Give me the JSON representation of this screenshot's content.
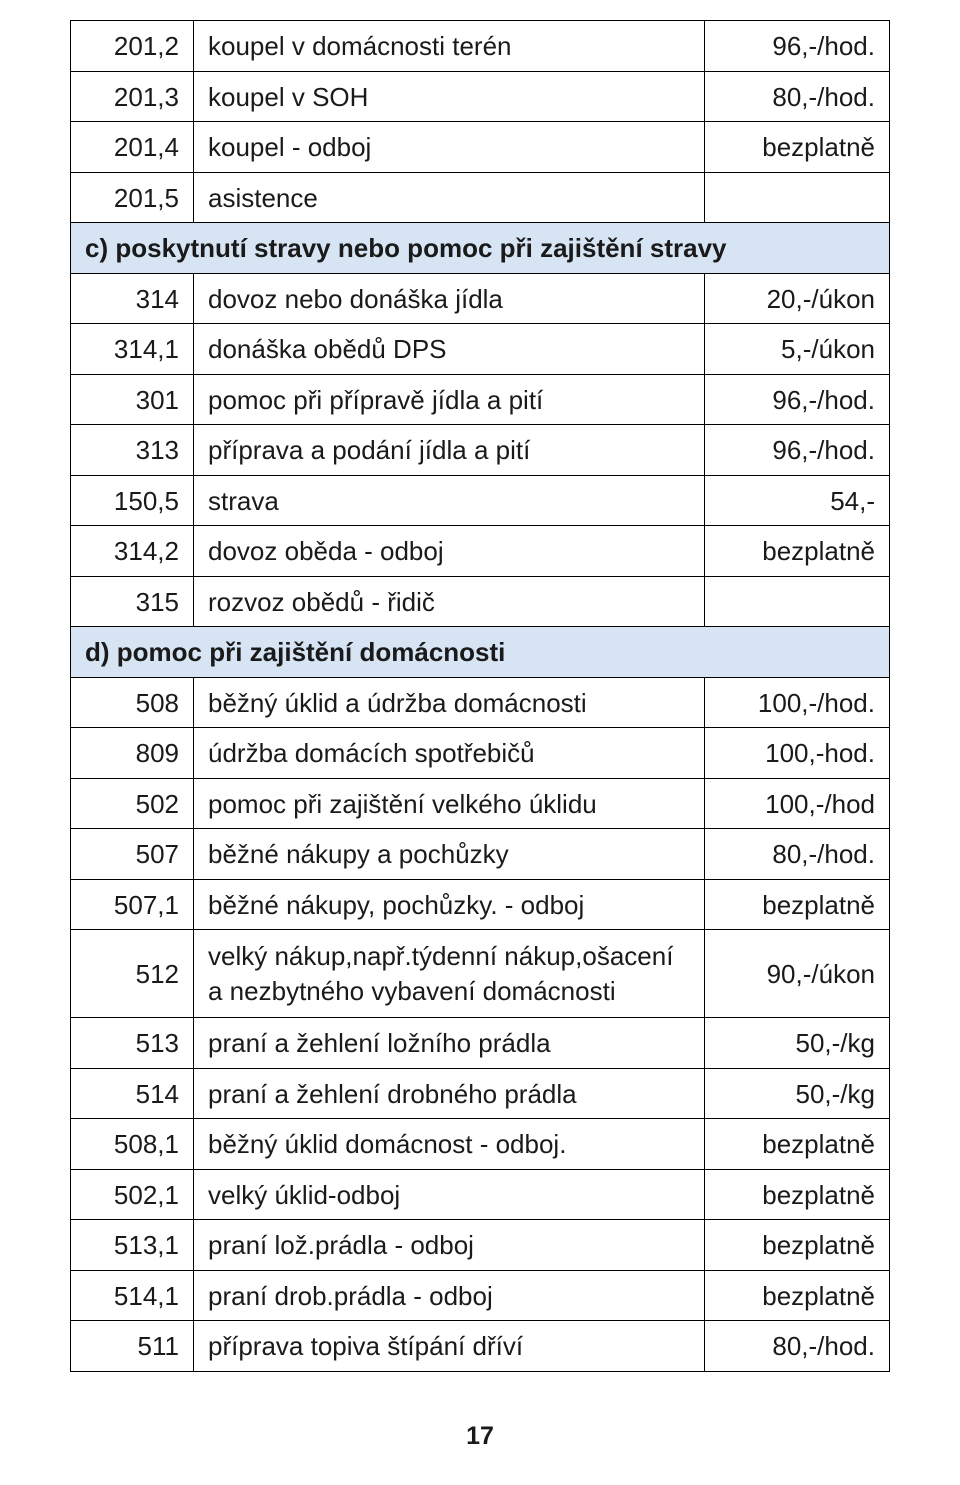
{
  "colors": {
    "section_bg": "#d6e4f4",
    "border": "#000000",
    "text": "#1a1a1a",
    "page_bg": "#ffffff"
  },
  "page_number": "17",
  "rows": [
    {
      "type": "row",
      "code": "201,2",
      "desc": "koupel v domácnosti terén",
      "price": "96,-/hod."
    },
    {
      "type": "row",
      "code": "201,3",
      "desc": "koupel v SOH",
      "price": "80,-/hod."
    },
    {
      "type": "row",
      "code": "201,4",
      "desc": "koupel - odboj",
      "price": "bezplatně"
    },
    {
      "type": "row",
      "code": "201,5",
      "desc": "asistence",
      "price": ""
    },
    {
      "type": "section",
      "label": "c) poskytnutí stravy nebo pomoc při zajištění stravy"
    },
    {
      "type": "row",
      "code": "314",
      "desc": "dovoz nebo donáška jídla",
      "price": "20,-/úkon"
    },
    {
      "type": "row",
      "code": "314,1",
      "desc": "donáška obědů DPS",
      "price": "5,-/úkon"
    },
    {
      "type": "row",
      "code": "301",
      "desc": "pomoc při přípravě jídla a pití",
      "price": "96,-/hod."
    },
    {
      "type": "row",
      "code": "313",
      "desc": "příprava a podání jídla a pití",
      "price": "96,-/hod."
    },
    {
      "type": "row",
      "code": "150,5",
      "desc": "strava",
      "price": "54,-"
    },
    {
      "type": "row",
      "code": "314,2",
      "desc": "dovoz oběda - odboj",
      "price": "bezplatně"
    },
    {
      "type": "row",
      "code": "315",
      "desc": "rozvoz obědů - řidič",
      "price": ""
    },
    {
      "type": "section",
      "label": "d) pomoc při zajištění domácnosti"
    },
    {
      "type": "row",
      "code": "508",
      "desc": "běžný úklid a údržba domácnosti",
      "price": "100,-/hod."
    },
    {
      "type": "row",
      "code": "809",
      "desc": "údržba domácích spotřebičů",
      "price": "100,-hod."
    },
    {
      "type": "row",
      "code": "502",
      "desc": "pomoc při zajištění velkého úklidu",
      "price": "100,-/hod"
    },
    {
      "type": "row",
      "code": "507",
      "desc": "běžné nákupy a pochůzky",
      "price": "80,-/hod."
    },
    {
      "type": "row",
      "code": "507,1",
      "desc": "běžné nákupy, pochůzky. - odboj",
      "price": "bezplatně"
    },
    {
      "type": "row",
      "tall": true,
      "code": "512",
      "desc": "velký nákup,např.týdenní nákup,ošacení a nezbytného vybavení domácnosti",
      "price": "90,-/úkon"
    },
    {
      "type": "row",
      "code": "513",
      "desc": "praní a žehlení ložního prádla",
      "price": "50,-/kg"
    },
    {
      "type": "row",
      "code": "514",
      "desc": "praní a žehlení drobného prádla",
      "price": "50,-/kg"
    },
    {
      "type": "row",
      "code": "508,1",
      "desc": "běžný úklid domácnost - odboj.",
      "price": "bezplatně"
    },
    {
      "type": "row",
      "code": "502,1",
      "desc": "velký úklid-odboj",
      "price": "bezplatně"
    },
    {
      "type": "row",
      "code": "513,1",
      "desc": "praní lož.prádla - odboj",
      "price": "bezplatně"
    },
    {
      "type": "row",
      "code": "514,1",
      "desc": "praní drob.prádla - odboj",
      "price": "bezplatně"
    },
    {
      "type": "row",
      "code": "511",
      "desc": "příprava topiva štípání dříví",
      "price": "80,-/hod."
    }
  ]
}
